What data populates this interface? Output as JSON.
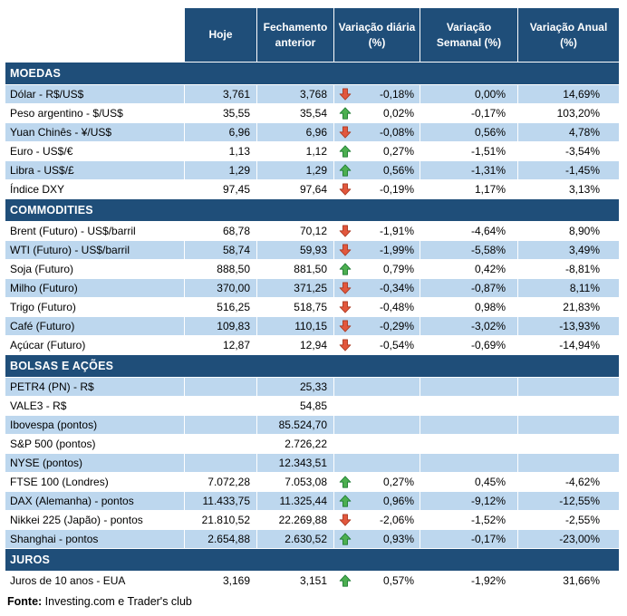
{
  "chart_data": {
    "type": "table",
    "columns": [
      "Hoje",
      "Fechamento anterior",
      "Variação diária (%)",
      "Variação Semanal (%)",
      "Variação Anual (%)"
    ],
    "sections": [
      {
        "title": "MOEDAS",
        "rows": [
          {
            "label": "Dólar - R$/US$",
            "hoje": "3,761",
            "fechamento": "3,768",
            "arrow": "down",
            "var_diaria": "-0,18%",
            "var_semanal": "0,00%",
            "var_anual": "14,69%"
          },
          {
            "label": "Peso argentino - $/US$",
            "hoje": "35,55",
            "fechamento": "35,54",
            "arrow": "up",
            "var_diaria": "0,02%",
            "var_semanal": "-0,17%",
            "var_anual": "103,20%"
          },
          {
            "label": "Yuan Chinês - ¥/US$",
            "hoje": "6,96",
            "fechamento": "6,96",
            "arrow": "down",
            "var_diaria": "-0,08%",
            "var_semanal": "0,56%",
            "var_anual": "4,78%"
          },
          {
            "label": "Euro - US$/€",
            "hoje": "1,13",
            "fechamento": "1,12",
            "arrow": "up",
            "var_diaria": "0,27%",
            "var_semanal": "-1,51%",
            "var_anual": "-3,54%"
          },
          {
            "label": "Libra - US$/£",
            "hoje": "1,29",
            "fechamento": "1,29",
            "arrow": "up",
            "var_diaria": "0,56%",
            "var_semanal": "-1,31%",
            "var_anual": "-1,45%"
          },
          {
            "label": "Índice DXY",
            "hoje": "97,45",
            "fechamento": "97,64",
            "arrow": "down",
            "var_diaria": "-0,19%",
            "var_semanal": "1,17%",
            "var_anual": "3,13%"
          }
        ]
      },
      {
        "title": "COMMODITIES",
        "rows": [
          {
            "label": "Brent (Futuro) - US$/barril",
            "hoje": "68,78",
            "fechamento": "70,12",
            "arrow": "down",
            "var_diaria": "-1,91%",
            "var_semanal": "-4,64%",
            "var_anual": "8,90%"
          },
          {
            "label": "WTI (Futuro) - US$/barril",
            "hoje": "58,74",
            "fechamento": "59,93",
            "arrow": "down",
            "var_diaria": "-1,99%",
            "var_semanal": "-5,58%",
            "var_anual": "3,49%"
          },
          {
            "label": "Soja (Futuro)",
            "hoje": "888,50",
            "fechamento": "881,50",
            "arrow": "up",
            "var_diaria": "0,79%",
            "var_semanal": "0,42%",
            "var_anual": "-8,81%"
          },
          {
            "label": "Milho (Futuro)",
            "hoje": "370,00",
            "fechamento": "371,25",
            "arrow": "down",
            "var_diaria": "-0,34%",
            "var_semanal": "-0,87%",
            "var_anual": "8,11%"
          },
          {
            "label": "Trigo (Futuro)",
            "hoje": "516,25",
            "fechamento": "518,75",
            "arrow": "down",
            "var_diaria": "-0,48%",
            "var_semanal": "0,98%",
            "var_anual": "21,83%"
          },
          {
            "label": "Café (Futuro)",
            "hoje": "109,83",
            "fechamento": "110,15",
            "arrow": "down",
            "var_diaria": "-0,29%",
            "var_semanal": "-3,02%",
            "var_anual": "-13,93%"
          },
          {
            "label": "Açúcar (Futuro)",
            "hoje": "12,87",
            "fechamento": "12,94",
            "arrow": "down",
            "var_diaria": "-0,54%",
            "var_semanal": "-0,69%",
            "var_anual": "-14,94%"
          }
        ]
      },
      {
        "title": "BOLSAS E AÇÕES",
        "rows": [
          {
            "label": "PETR4 (PN) - R$",
            "hoje": "",
            "fechamento": "25,33",
            "arrow": "",
            "var_diaria": "",
            "var_semanal": "",
            "var_anual": ""
          },
          {
            "label": "VALE3 - R$",
            "hoje": "",
            "fechamento": "54,85",
            "arrow": "",
            "var_diaria": "",
            "var_semanal": "",
            "var_anual": ""
          },
          {
            "label": "Ibovespa (pontos)",
            "hoje": "",
            "fechamento": "85.524,70",
            "arrow": "",
            "var_diaria": "",
            "var_semanal": "",
            "var_anual": ""
          },
          {
            "label": "S&P 500 (pontos)",
            "hoje": "",
            "fechamento": "2.726,22",
            "arrow": "",
            "var_diaria": "",
            "var_semanal": "",
            "var_anual": ""
          },
          {
            "label": "NYSE (pontos)",
            "hoje": "",
            "fechamento": "12.343,51",
            "arrow": "",
            "var_diaria": "",
            "var_semanal": "",
            "var_anual": ""
          },
          {
            "label": "FTSE 100 (Londres)",
            "hoje": "7.072,28",
            "fechamento": "7.053,08",
            "arrow": "up",
            "var_diaria": "0,27%",
            "var_semanal": "0,45%",
            "var_anual": "-4,62%"
          },
          {
            "label": "DAX (Alemanha) - pontos",
            "hoje": "11.433,75",
            "fechamento": "11.325,44",
            "arrow": "up",
            "var_diaria": "0,96%",
            "var_semanal": "-9,12%",
            "var_anual": "-12,55%"
          },
          {
            "label": "Nikkei 225 (Japão) - pontos",
            "hoje": "21.810,52",
            "fechamento": "22.269,88",
            "arrow": "down",
            "var_diaria": "-2,06%",
            "var_semanal": "-1,52%",
            "var_anual": "-2,55%"
          },
          {
            "label": "Shanghai - pontos",
            "hoje": "2.654,88",
            "fechamento": "2.630,52",
            "arrow": "up",
            "var_diaria": "0,93%",
            "var_semanal": "-0,17%",
            "var_anual": "-23,00%"
          }
        ]
      },
      {
        "title": "JUROS",
        "rows": [
          {
            "label": "Juros de 10 anos - EUA",
            "hoje": "3,169",
            "fechamento": "3,151",
            "arrow": "up",
            "var_diaria": "0,57%",
            "var_semanal": "-1,92%",
            "var_anual": "31,66%"
          }
        ]
      }
    ]
  },
  "footer": {
    "label": "Fonte:",
    "text": " Investing.com e Trader's club"
  },
  "colors": {
    "header_bg": "#1F4E79",
    "band": "#BDD7EE",
    "arrow_up": "#4CAF50",
    "arrow_up_stroke": "#1E7B34",
    "arrow_down": "#E2573D",
    "arrow_down_stroke": "#AA3A23"
  }
}
